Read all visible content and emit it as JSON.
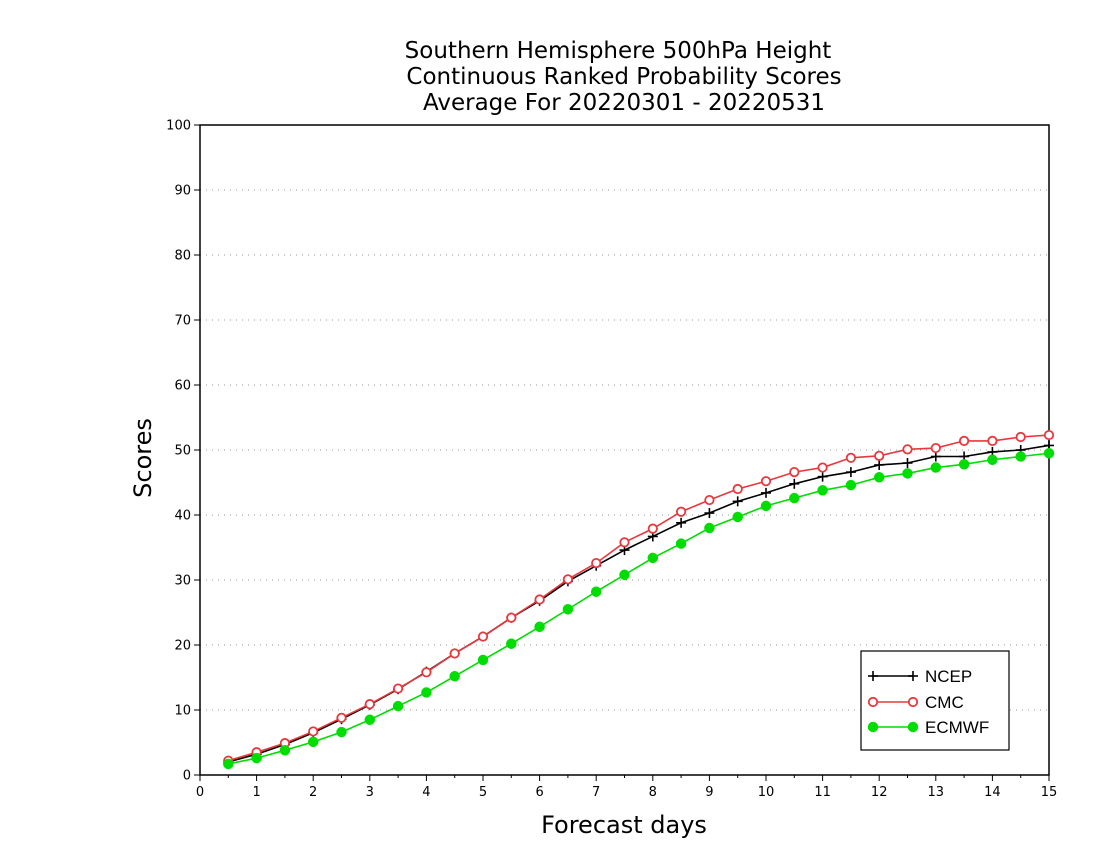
{
  "chart_data": {
    "type": "line",
    "title": [
      "Southern Hemisphere 500hPa Height",
      "Continuous Ranked Probability Scores",
      "Average For 20220301 - 20220531"
    ],
    "xlabel": "Forecast days",
    "ylabel": "Scores",
    "xlim": [
      0,
      15
    ],
    "ylim": [
      0,
      100
    ],
    "xticks": [
      "0",
      "1",
      "2",
      "3",
      "4",
      "5",
      "6",
      "7",
      "8",
      "9",
      "10",
      "11",
      "12",
      "13",
      "14",
      "15"
    ],
    "yticks": [
      "0",
      "10",
      "20",
      "30",
      "40",
      "50",
      "60",
      "70",
      "80",
      "90",
      "100"
    ],
    "grid": "horizontal dotted",
    "legend_position": "bottom-right",
    "x": [
      0.5,
      1,
      1.5,
      2,
      2.5,
      3,
      3.5,
      4,
      4.5,
      5,
      5.5,
      6,
      6.5,
      7,
      7.5,
      8,
      8.5,
      9,
      9.5,
      10,
      10.5,
      11,
      11.5,
      12,
      12.5,
      13,
      13.5,
      14,
      14.5,
      15
    ],
    "series": [
      {
        "name": "NCEP",
        "color": "#000000",
        "marker": "plus",
        "values": [
          2.0,
          3.2,
          4.7,
          6.5,
          8.6,
          10.8,
          13.2,
          15.9,
          18.7,
          21.3,
          24.2,
          26.8,
          29.8,
          32.2,
          34.6,
          36.7,
          38.8,
          40.3,
          42.1,
          43.4,
          44.8,
          45.9,
          46.6,
          47.7,
          48.0,
          49.0,
          49.0,
          49.7,
          50.0,
          50.7
        ]
      },
      {
        "name": "CMC",
        "color": "#e8383d",
        "marker": "open-circle",
        "values": [
          2.2,
          3.5,
          4.9,
          6.7,
          8.8,
          10.9,
          13.3,
          15.8,
          18.7,
          21.3,
          24.2,
          27.0,
          30.1,
          32.6,
          35.8,
          37.9,
          40.5,
          42.3,
          44.0,
          45.2,
          46.6,
          47.3,
          48.8,
          49.1,
          50.1,
          50.3,
          51.4,
          51.4,
          52.0,
          52.3
        ]
      },
      {
        "name": "ECMWF",
        "color": "#00dd00",
        "marker": "filled-circle",
        "values": [
          1.7,
          2.6,
          3.8,
          5.1,
          6.6,
          8.5,
          10.6,
          12.7,
          15.2,
          17.7,
          20.2,
          22.8,
          25.5,
          28.2,
          30.8,
          33.4,
          35.6,
          38.0,
          39.7,
          41.4,
          42.6,
          43.8,
          44.6,
          45.8,
          46.4,
          47.3,
          47.8,
          48.5,
          49.0,
          49.5
        ]
      }
    ]
  }
}
